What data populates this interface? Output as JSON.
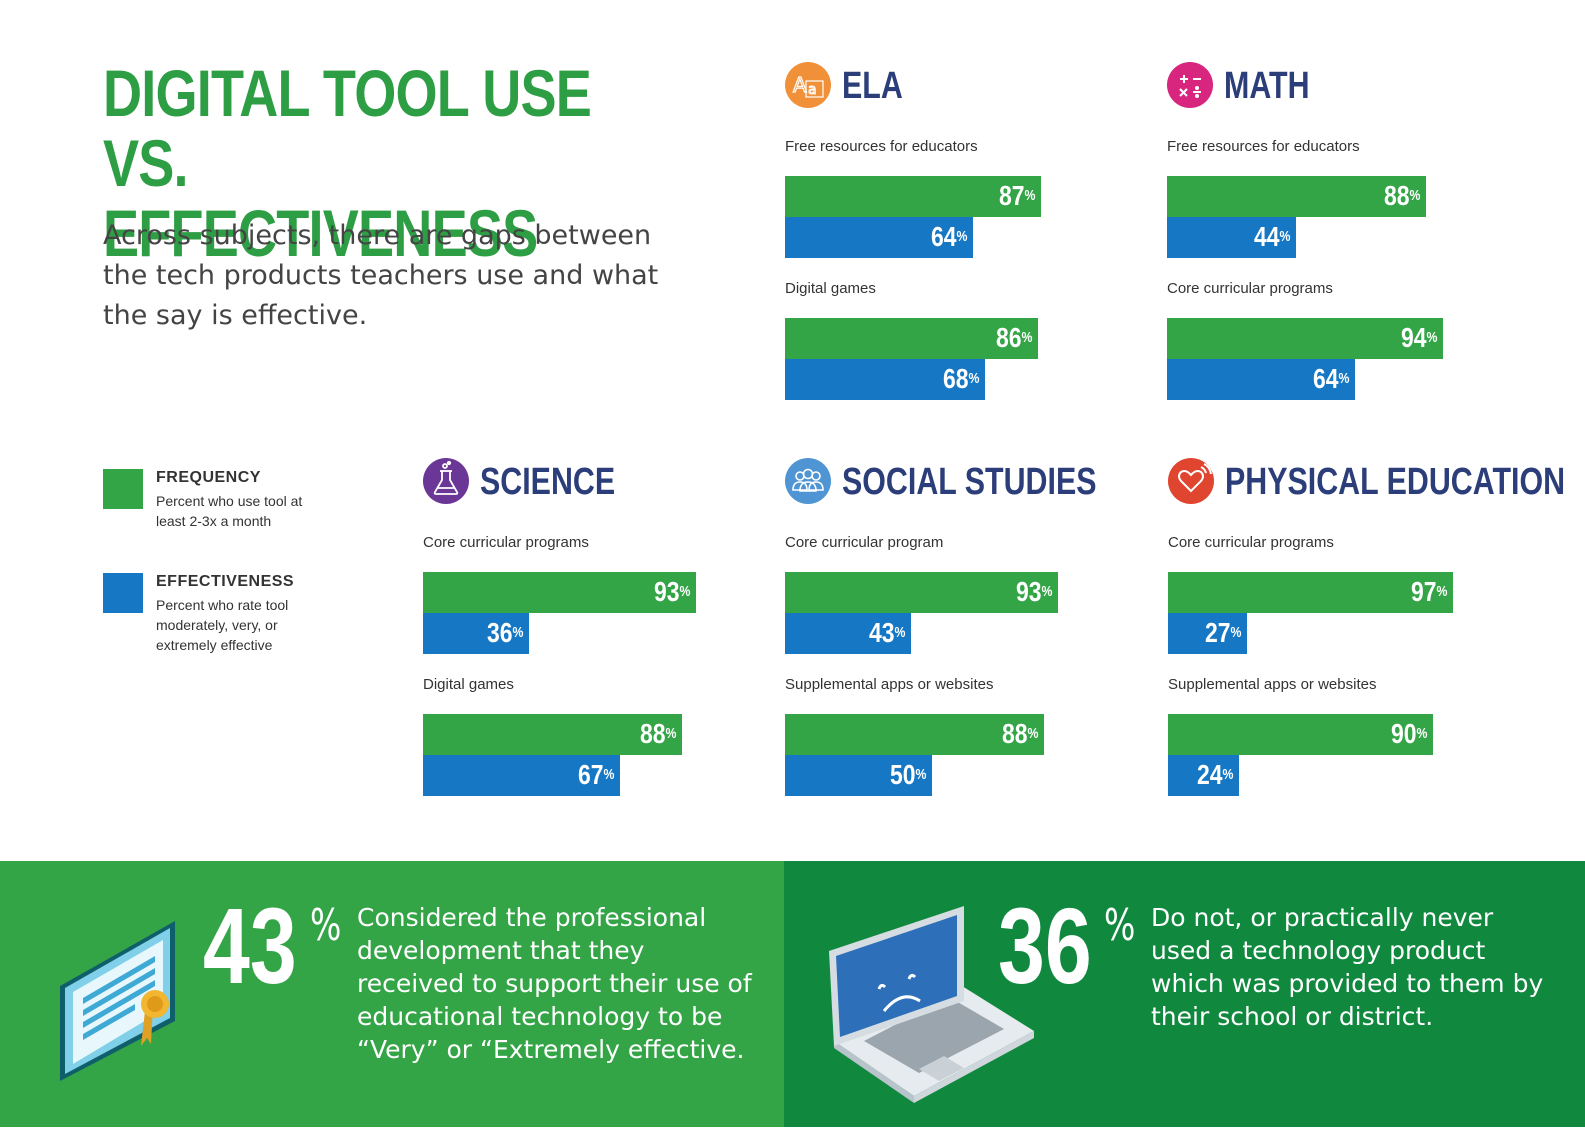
{
  "header": {
    "title_line1": "DIGITAL TOOL USE VS.",
    "title_line2": "EFFECTIVENESS",
    "subtitle": "Across subjects, there are gaps between the tech products teachers use and what the say is effective."
  },
  "legend": {
    "frequency": {
      "title": "FREQUENCY",
      "desc": "Percent who use tool at least 2-3x a month",
      "color": "#34a547"
    },
    "effectiveness": {
      "title": "EFFECTIVENESS",
      "desc": "Percent who rate tool moderately, very, or extremely effective",
      "color": "#1677c4"
    }
  },
  "chart_data": [
    {
      "type": "bar",
      "title": "ELA",
      "icon": "letters-icon",
      "icon_color": "#f0913a",
      "categories": [
        "Free resources for educators",
        "Digital games"
      ],
      "series": [
        {
          "name": "FREQUENCY",
          "values": [
            87,
            86
          ]
        },
        {
          "name": "EFFECTIVENESS",
          "values": [
            64,
            68
          ]
        }
      ],
      "labels": {
        "freq": [
          "87",
          "86"
        ],
        "eff": [
          "64",
          "68"
        ]
      },
      "unit": "%"
    },
    {
      "type": "bar",
      "title": "MATH",
      "icon": "math-operators-icon",
      "icon_color": "#d8267e",
      "categories": [
        "Free resources for educators",
        "Core curricular programs"
      ],
      "series": [
        {
          "name": "FREQUENCY",
          "values": [
            88,
            94
          ]
        },
        {
          "name": "EFFECTIVENESS",
          "values": [
            44,
            64
          ]
        }
      ],
      "labels": {
        "freq": [
          "88",
          "94"
        ],
        "eff": [
          "44",
          "64"
        ]
      },
      "unit": "%"
    },
    {
      "type": "bar",
      "title": "SCIENCE",
      "icon": "flask-icon",
      "icon_color": "#6a3796",
      "categories": [
        "Core curricular programs",
        "Digital games"
      ],
      "series": [
        {
          "name": "FREQUENCY",
          "values": [
            93,
            88
          ]
        },
        {
          "name": "EFFECTIVENESS",
          "values": [
            36,
            67
          ]
        }
      ],
      "labels": {
        "freq": [
          "93",
          "88"
        ],
        "eff": [
          "36",
          "67"
        ]
      },
      "unit": "%"
    },
    {
      "type": "bar",
      "title": "SOCIAL STUDIES",
      "icon": "people-icon",
      "icon_color": "#4f95d3",
      "categories": [
        "Core curricular program",
        "Supplemental apps or websites"
      ],
      "series": [
        {
          "name": "FREQUENCY",
          "values": [
            93,
            88
          ]
        },
        {
          "name": "EFFECTIVENESS",
          "values": [
            43,
            50
          ]
        }
      ],
      "labels": {
        "freq": [
          "93",
          "88"
        ],
        "eff": [
          "43",
          "50"
        ]
      },
      "unit": "%"
    },
    {
      "type": "bar",
      "title": "PHYSICAL EDUCATION",
      "icon": "heart-icon",
      "icon_color": "#e0452f",
      "categories": [
        "Core curricular programs",
        "Supplemental apps or websites"
      ],
      "series": [
        {
          "name": "FREQUENCY",
          "values": [
            97,
            90
          ]
        },
        {
          "name": "EFFECTIVENESS",
          "values": [
            27,
            24
          ]
        }
      ],
      "labels": {
        "freq": [
          "97",
          "90"
        ],
        "eff": [
          "27",
          "24"
        ]
      },
      "unit": "%"
    }
  ],
  "footer": {
    "left": {
      "number": "43",
      "pct": "%",
      "text": "Considered the professional development that they received to support their use of educational technology to be “Very” or “Extremely effective.",
      "icon": "certificate-icon"
    },
    "right": {
      "number": "36",
      "pct": "%",
      "text": "Do not, or practically never used a technology product which was provided to them by their school or district.",
      "icon": "sad-laptop-icon"
    }
  }
}
